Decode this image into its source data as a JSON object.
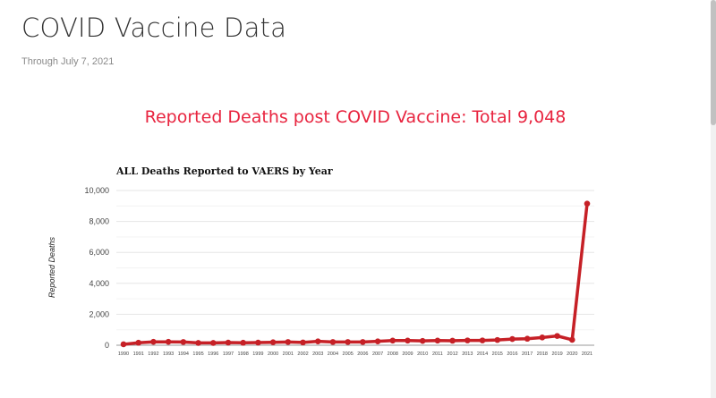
{
  "page": {
    "title": "COVID Vaccine Data",
    "subtitle": "Through July 7, 2021",
    "headline": "Reported Deaths post COVID Vaccine: Total 9,048"
  },
  "colors": {
    "headline": "#e8243f",
    "series": "#c62026",
    "grid": "#e6e6e6",
    "axis": "#999999"
  },
  "chart_data": {
    "type": "line",
    "title": "ALL Deaths Reported to VAERS by Year",
    "xlabel": "",
    "ylabel": "Reported Deaths",
    "ylim": [
      0,
      10000
    ],
    "yticks": [
      0,
      2000,
      4000,
      6000,
      8000,
      10000
    ],
    "ytick_labels": [
      "0",
      "2,000",
      "4,000",
      "6,000",
      "8,000",
      "10,000"
    ],
    "grid": true,
    "categories": [
      "1990",
      "1991",
      "1992",
      "1993",
      "1994",
      "1995",
      "1996",
      "1997",
      "1998",
      "1999",
      "2000",
      "2001",
      "2002",
      "2003",
      "2004",
      "2005",
      "2006",
      "2007",
      "2008",
      "2009",
      "2010",
      "2011",
      "2012",
      "2013",
      "2014",
      "2015",
      "2016",
      "2017",
      "2018",
      "2019",
      "2020",
      "2021"
    ],
    "series": [
      {
        "values": [
          60,
          160,
          220,
          220,
          210,
          150,
          150,
          170,
          160,
          170,
          190,
          210,
          180,
          250,
          210,
          210,
          210,
          250,
          300,
          300,
          280,
          300,
          290,
          310,
          310,
          340,
          400,
          420,
          500,
          600,
          350,
          9150
        ]
      }
    ]
  }
}
